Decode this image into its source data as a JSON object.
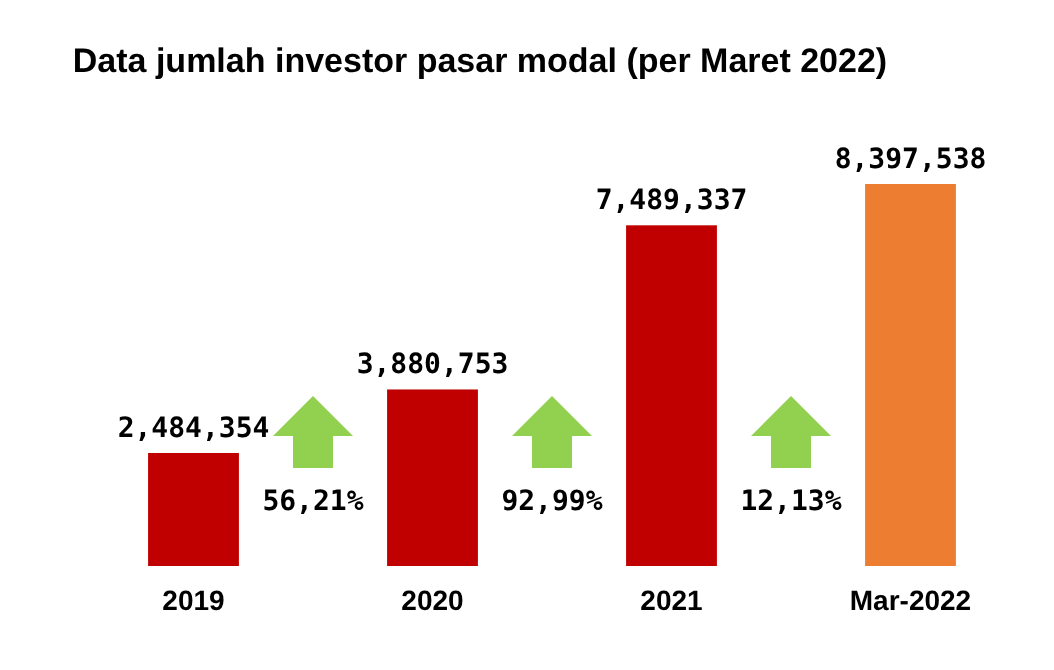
{
  "chart_data": {
    "type": "bar",
    "title": "Data jumlah investor pasar modal (per Maret 2022)",
    "categories": [
      "2019",
      "2020",
      "2021",
      "Mar-2022"
    ],
    "values": [
      2484354,
      3880753,
      7489337,
      8397538
    ],
    "value_labels": [
      "2,484,354",
      "3,880,753",
      "7,489,337",
      "8,397,538"
    ],
    "colors": [
      "#c00000",
      "#c00000",
      "#c00000",
      "#ed7d31"
    ],
    "annotations": [
      "56,21%",
      "92,99%",
      "12,13%"
    ]
  }
}
